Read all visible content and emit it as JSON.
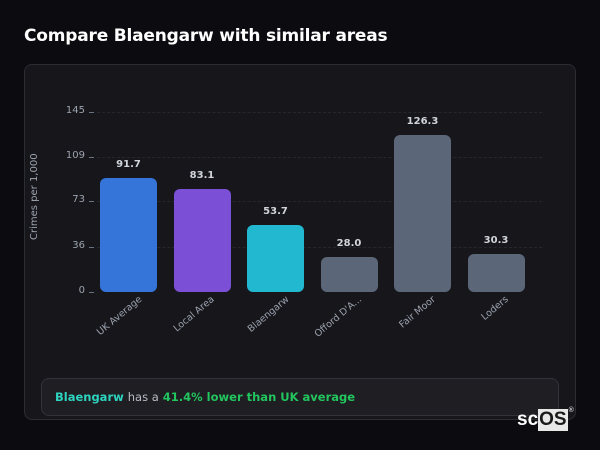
{
  "page": {
    "title": "Compare Blaengarw with similar areas"
  },
  "chart_data": {
    "type": "bar",
    "title": "Compare Blaengarw with similar areas",
    "xlabel": "",
    "ylabel": "Crimes per 1,000",
    "categories": [
      "UK Average",
      "Local Area",
      "Blaengarw",
      "Offord D'A...",
      "Fair Moor",
      "Loders"
    ],
    "values": [
      91.7,
      83.1,
      53.7,
      28.0,
      126.3,
      30.3
    ],
    "value_labels": [
      "91.7",
      "83.1",
      "53.7",
      "28.0",
      "126.3",
      "30.3"
    ],
    "colors": [
      "#3574d8",
      "#7b4fd6",
      "#22b8d0",
      "#5b6678",
      "#5b6678",
      "#5b6678"
    ],
    "yticks": [
      0,
      36,
      73,
      109,
      145
    ],
    "ytick_labels": [
      "0",
      "36",
      "73",
      "109",
      "145"
    ],
    "ylim": [
      0,
      145
    ],
    "grid": true,
    "legend": null
  },
  "summary": {
    "area": "Blaengarw",
    "middle": "has a",
    "comparison": "41.4% lower than UK average"
  },
  "watermark": {
    "left": "sc",
    "right": "OS",
    "mark": "®"
  }
}
